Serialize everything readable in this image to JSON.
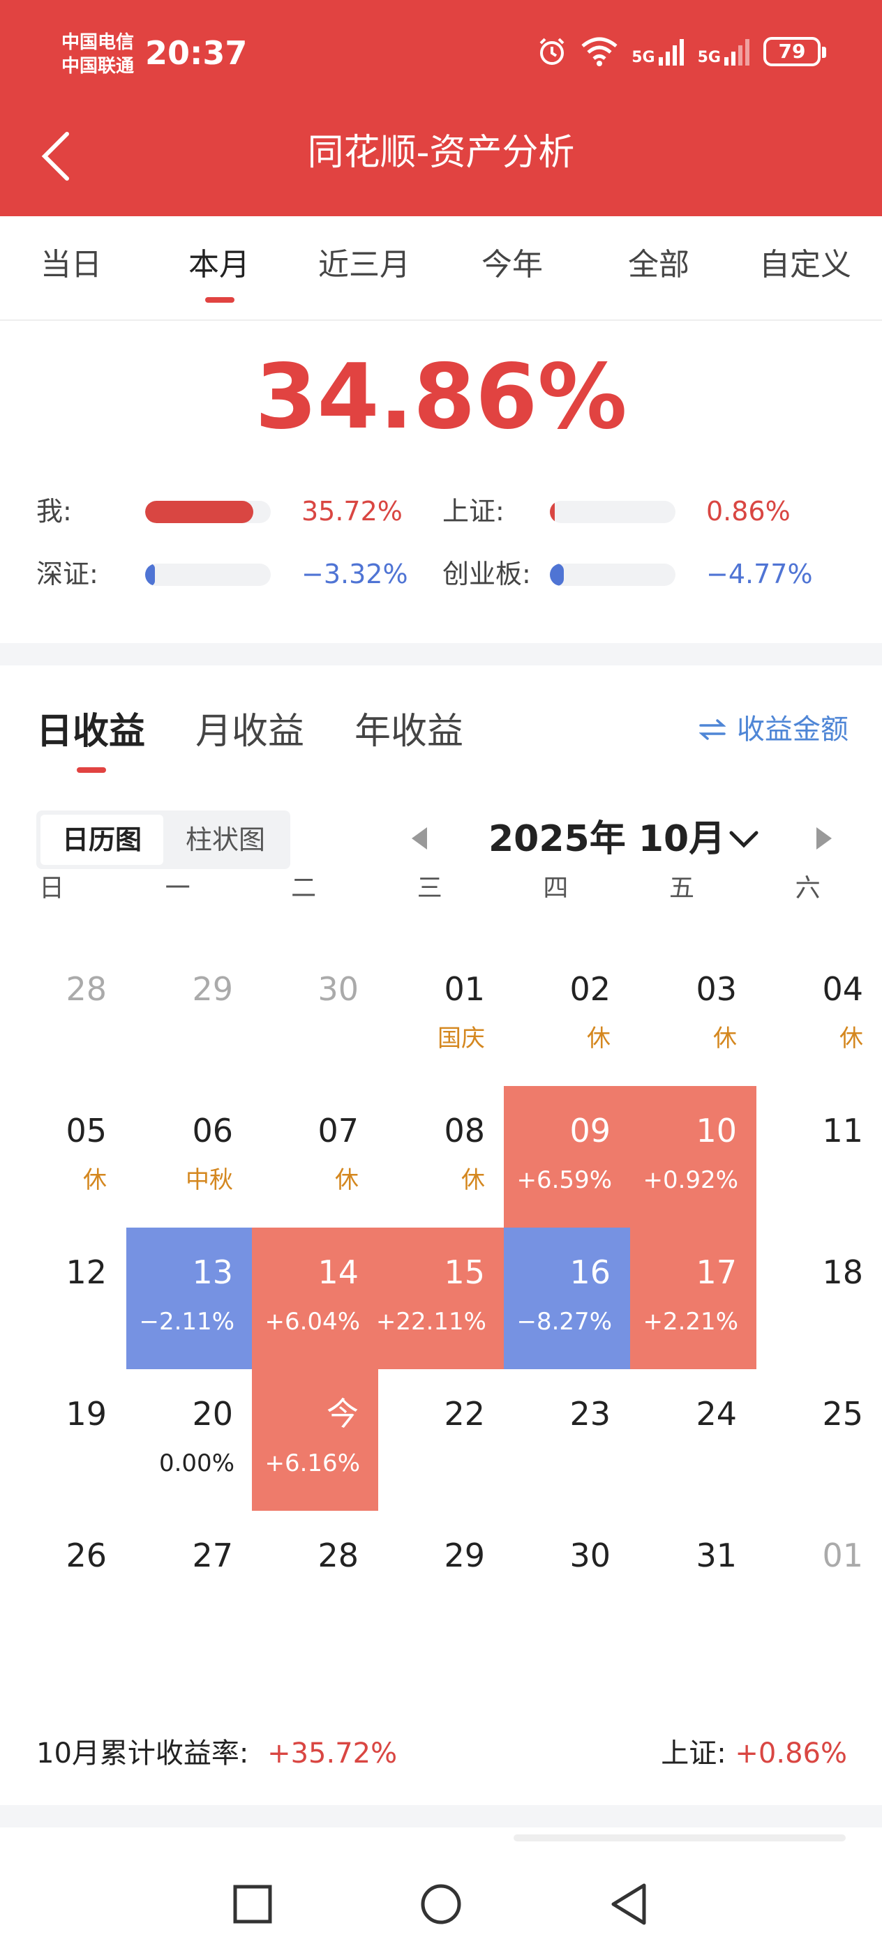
{
  "status": {
    "carrier1": "中国电信",
    "carrier2": "中国联通",
    "time": "20:37",
    "signal1": "5G",
    "signal2": "5G",
    "battery": "79"
  },
  "header": {
    "title": "同花顺-资产分析"
  },
  "range_tabs": [
    "当日",
    "本月",
    "近三月",
    "今年",
    "全部",
    "自定义"
  ],
  "summary": {
    "total_return": "34.86%",
    "comparisons": [
      {
        "label": "我:",
        "value": "35.72%",
        "fill": 0.86,
        "color": "#d94642"
      },
      {
        "label": "上证:",
        "value": "0.86%",
        "fill": 0.02,
        "color": "#d94642"
      },
      {
        "label": "深证:",
        "value": "−3.32%",
        "fill": 0.08,
        "color": "#4f74d4"
      },
      {
        "label": "创业板:",
        "value": "−4.77%",
        "fill": 0.11,
        "color": "#4f74d4"
      }
    ]
  },
  "sub_tabs": [
    "日收益",
    "月收益",
    "年收益"
  ],
  "amount_toggle": "收益金额",
  "view_switch": [
    "日历图",
    "柱状图"
  ],
  "month_label": "2025年 10月",
  "weekdays": [
    "日",
    "一",
    "二",
    "三",
    "四",
    "五",
    "六"
  ],
  "calendar": [
    [
      {
        "day": "28",
        "other": true
      },
      {
        "day": "29",
        "other": true
      },
      {
        "day": "30",
        "other": true
      },
      {
        "day": "01",
        "note": "国庆"
      },
      {
        "day": "02",
        "note": "休"
      },
      {
        "day": "03",
        "note": "休"
      },
      {
        "day": "04",
        "note": "休"
      }
    ],
    [
      {
        "day": "05",
        "note": "休"
      },
      {
        "day": "06",
        "note": "中秋"
      },
      {
        "day": "07",
        "note": "休"
      },
      {
        "day": "08",
        "note": "休"
      },
      {
        "day": "09",
        "pct": "+6.59%",
        "trend": "up"
      },
      {
        "day": "10",
        "pct": "+0.92%",
        "trend": "up"
      },
      {
        "day": "11"
      }
    ],
    [
      {
        "day": "12"
      },
      {
        "day": "13",
        "pct": "−2.11%",
        "trend": "down"
      },
      {
        "day": "14",
        "pct": "+6.04%",
        "trend": "up"
      },
      {
        "day": "15",
        "pct": "+22.11%",
        "trend": "up"
      },
      {
        "day": "16",
        "pct": "−8.27%",
        "trend": "down"
      },
      {
        "day": "17",
        "pct": "+2.21%",
        "trend": "up"
      },
      {
        "day": "18"
      }
    ],
    [
      {
        "day": "19"
      },
      {
        "day": "20",
        "pct": "0.00%",
        "trend": "zero"
      },
      {
        "day": "今",
        "pct": "+6.16%",
        "trend": "up"
      },
      {
        "day": "22"
      },
      {
        "day": "23"
      },
      {
        "day": "24"
      },
      {
        "day": "25"
      }
    ],
    [
      {
        "day": "26"
      },
      {
        "day": "27"
      },
      {
        "day": "28"
      },
      {
        "day": "29"
      },
      {
        "day": "30"
      },
      {
        "day": "31"
      },
      {
        "day": "01",
        "other": true
      }
    ]
  ],
  "footer": {
    "month_label": "10月累计收益率:",
    "month_value": "+35.72%",
    "index_label": "上证:",
    "index_value": "+0.86%"
  }
}
